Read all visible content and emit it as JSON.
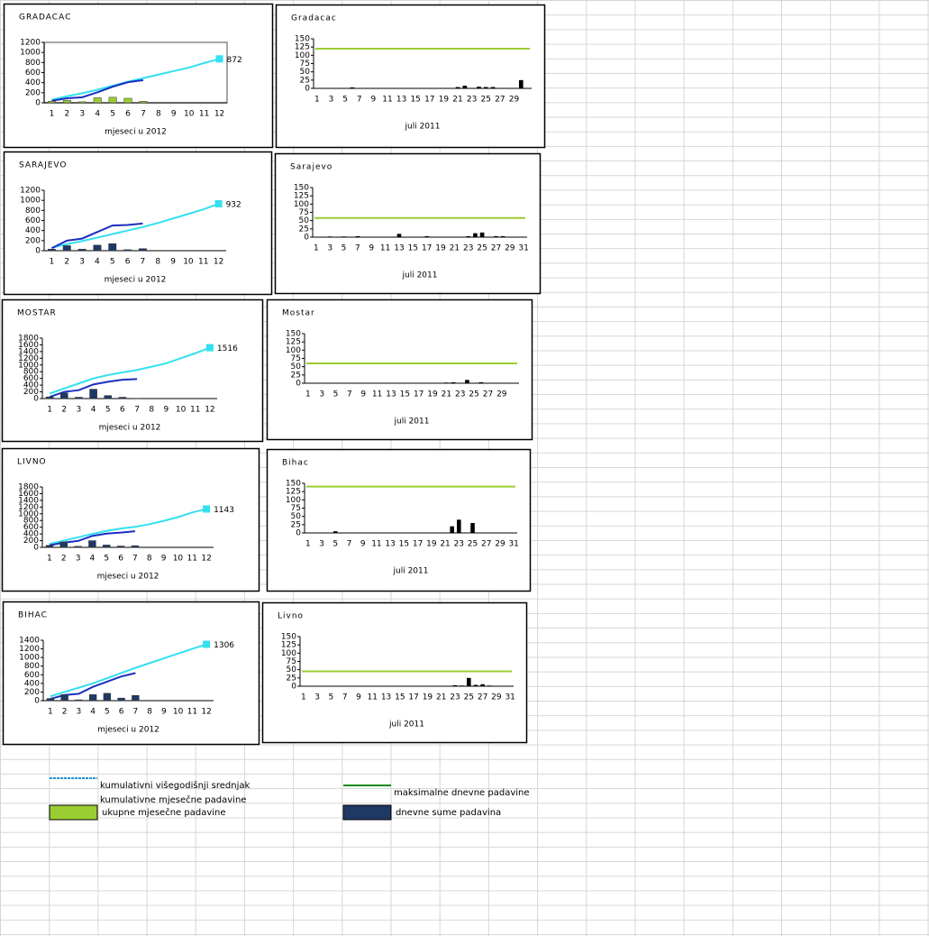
{
  "chart_data": [
    {
      "type": "monthly",
      "title": "GRADACAC",
      "x_label": "mjeseci u 2012",
      "categories": [
        1,
        2,
        3,
        4,
        5,
        6,
        7,
        8,
        9,
        10,
        11,
        12
      ],
      "ylim": [
        0,
        1200
      ],
      "yticks": [
        0,
        200,
        400,
        600,
        800,
        1000,
        1200
      ],
      "plot_border": true,
      "series": [
        {
          "kind": "line",
          "color": "#33e0f0",
          "values": [
            60,
            130,
            190,
            260,
            340,
            420,
            490,
            560,
            630,
            700,
            790,
            872
          ]
        },
        {
          "kind": "line",
          "color": "#1a2fbf",
          "values": [
            40,
            90,
            110,
            210,
            320,
            410,
            450,
            null,
            null,
            null,
            null,
            null
          ]
        },
        {
          "kind": "bar",
          "color": "#9acd32",
          "values": [
            30,
            50,
            20,
            100,
            110,
            90,
            30,
            null,
            null,
            null,
            null,
            null
          ]
        }
      ]
    },
    {
      "type": "daily",
      "title": "Gradacac",
      "x_label": "juli 2011",
      "categories": [
        1,
        null,
        3,
        null,
        5,
        null,
        7,
        null,
        9,
        null,
        11,
        null,
        13,
        null,
        15,
        null,
        17,
        null,
        19,
        null,
        21,
        null,
        23,
        null,
        25,
        null,
        27,
        null,
        29,
        null,
        null
      ],
      "ylim": [
        0,
        150
      ],
      "yticks": [
        0,
        25,
        50,
        75,
        100,
        125,
        150
      ],
      "bar_color": "#000000",
      "max_value": 120,
      "max_color": "#9acd32",
      "values": [
        0,
        0,
        0,
        0,
        0,
        3,
        0,
        0,
        0,
        0,
        0,
        0,
        0,
        0,
        0,
        0,
        0,
        0,
        0,
        0,
        4,
        8,
        0,
        5,
        4,
        4,
        0,
        0,
        0,
        25,
        0
      ]
    },
    {
      "type": "monthly",
      "title": "SARAJEVO",
      "x_label": "mjeseci u 2012",
      "categories": [
        1,
        2,
        3,
        4,
        5,
        6,
        7,
        8,
        9,
        10,
        11,
        12
      ],
      "ylim": [
        0,
        1200
      ],
      "yticks": [
        0,
        200,
        400,
        600,
        800,
        1000,
        1200
      ],
      "plot_border": false,
      "series": [
        {
          "kind": "line",
          "color": "#33e0f0",
          "values": [
            60,
            130,
            190,
            260,
            330,
            400,
            470,
            550,
            640,
            730,
            820,
            932
          ]
        },
        {
          "kind": "line",
          "color": "#1a2fbf",
          "values": [
            50,
            200,
            240,
            370,
            500,
            510,
            540,
            null,
            null,
            null,
            null,
            null
          ]
        },
        {
          "kind": "bar",
          "color": "#1f3864",
          "values": [
            30,
            100,
            30,
            110,
            140,
            20,
            40,
            null,
            null,
            null,
            null,
            null
          ]
        }
      ]
    },
    {
      "type": "daily",
      "title": "Sarajevo",
      "x_label": "juli 2011",
      "categories": [
        1,
        null,
        3,
        null,
        5,
        null,
        7,
        null,
        9,
        null,
        11,
        null,
        13,
        null,
        15,
        null,
        17,
        null,
        19,
        null,
        21,
        null,
        23,
        null,
        25,
        null,
        27,
        null,
        29,
        null,
        31
      ],
      "ylim": [
        0,
        150
      ],
      "yticks": [
        0,
        25,
        50,
        75,
        100,
        125,
        150
      ],
      "bar_color": "#000000",
      "max_value": 58,
      "max_color": "#9acd32",
      "values": [
        0,
        0,
        2,
        0,
        2,
        0,
        3,
        0,
        0,
        0,
        0,
        0,
        10,
        0,
        0,
        0,
        3,
        0,
        0,
        0,
        0,
        0,
        3,
        12,
        14,
        0,
        3,
        3,
        0,
        0,
        0
      ]
    },
    {
      "type": "monthly",
      "title": "MOSTAR",
      "x_label": "mjeseci u 2012",
      "categories": [
        1,
        2,
        3,
        4,
        5,
        6,
        7,
        8,
        9,
        10,
        11,
        12
      ],
      "ylim": [
        0,
        1800
      ],
      "yticks": [
        0,
        200,
        400,
        600,
        800,
        1000,
        1200,
        1400,
        1600,
        1800
      ],
      "plot_border": false,
      "series": [
        {
          "kind": "line",
          "color": "#33e0f0",
          "values": [
            150,
            300,
            450,
            600,
            700,
            780,
            850,
            950,
            1050,
            1200,
            1350,
            1516
          ]
        },
        {
          "kind": "line",
          "color": "#1a2fbf",
          "values": [
            50,
            200,
            250,
            420,
            500,
            560,
            580,
            null,
            null,
            null,
            null,
            null
          ]
        },
        {
          "kind": "bar",
          "color": "#1f3864",
          "values": [
            50,
            170,
            40,
            280,
            90,
            40,
            10,
            null,
            null,
            null,
            null,
            null
          ]
        }
      ]
    },
    {
      "type": "daily",
      "title": "Mostar",
      "x_label": "juli 2011",
      "categories": [
        1,
        null,
        3,
        null,
        5,
        null,
        7,
        null,
        9,
        null,
        11,
        null,
        13,
        null,
        15,
        null,
        17,
        null,
        19,
        null,
        21,
        null,
        23,
        null,
        25,
        null,
        27,
        null,
        29,
        null,
        null
      ],
      "ylim": [
        0,
        150
      ],
      "yticks": [
        0,
        25,
        50,
        75,
        100,
        125,
        150
      ],
      "bar_color": "#000000",
      "max_value": 60,
      "max_color": "#9acd32",
      "values": [
        0,
        0,
        0,
        0,
        0,
        0,
        0,
        0,
        0,
        0,
        0,
        0,
        0,
        0,
        0,
        0,
        0,
        0,
        0,
        0,
        2,
        3,
        0,
        10,
        0,
        3,
        0,
        0,
        0,
        0,
        0
      ]
    },
    {
      "type": "monthly",
      "title": "LIVNO",
      "x_label": "mjeseci u 2012",
      "categories": [
        1,
        2,
        3,
        4,
        5,
        6,
        7,
        8,
        9,
        10,
        11,
        12
      ],
      "ylim": [
        0,
        1800
      ],
      "yticks": [
        0,
        200,
        400,
        600,
        800,
        1000,
        1200,
        1400,
        1600,
        1800
      ],
      "plot_border": false,
      "series": [
        {
          "kind": "line",
          "color": "#33e0f0",
          "values": [
            100,
            200,
            300,
            400,
            490,
            560,
            610,
            690,
            790,
            900,
            1040,
            1143
          ]
        },
        {
          "kind": "line",
          "color": "#1a2fbf",
          "values": [
            60,
            140,
            190,
            340,
            410,
            440,
            480,
            null,
            null,
            null,
            null,
            null
          ]
        },
        {
          "kind": "bar",
          "color": "#1f3864",
          "values": [
            60,
            160,
            30,
            200,
            70,
            40,
            50,
            null,
            null,
            null,
            null,
            null
          ]
        }
      ]
    },
    {
      "type": "daily",
      "title": "Bihac",
      "x_label": "juli 2011",
      "categories": [
        1,
        null,
        3,
        null,
        5,
        null,
        7,
        null,
        9,
        null,
        11,
        null,
        13,
        null,
        15,
        null,
        17,
        null,
        19,
        null,
        21,
        null,
        23,
        null,
        25,
        null,
        27,
        null,
        29,
        null,
        31
      ],
      "ylim": [
        0,
        150
      ],
      "yticks": [
        0,
        25,
        50,
        75,
        100,
        125,
        150
      ],
      "bar_color": "#000000",
      "max_value": 140,
      "max_color": "#9acd32",
      "values": [
        0,
        0,
        0,
        0,
        5,
        0,
        0,
        0,
        0,
        0,
        0,
        0,
        0,
        0,
        0,
        0,
        0,
        0,
        0,
        0,
        0,
        20,
        40,
        0,
        30,
        0,
        0,
        0,
        0,
        0,
        0
      ]
    },
    {
      "type": "monthly",
      "title": "BIHAC",
      "x_label": "mjeseci u 2012",
      "categories": [
        1,
        2,
        3,
        4,
        5,
        6,
        7,
        8,
        9,
        10,
        11,
        12
      ],
      "ylim": [
        0,
        1400
      ],
      "yticks": [
        0,
        200,
        400,
        600,
        800,
        1000,
        1200,
        1400
      ],
      "plot_border": false,
      "series": [
        {
          "kind": "line",
          "color": "#33e0f0",
          "values": [
            100,
            200,
            300,
            400,
            520,
            640,
            760,
            870,
            980,
            1090,
            1200,
            1306
          ]
        },
        {
          "kind": "line",
          "color": "#1a2fbf",
          "values": [
            40,
            130,
            160,
            320,
            440,
            560,
            640,
            null,
            null,
            null,
            null,
            null
          ]
        },
        {
          "kind": "bar",
          "color": "#1f3864",
          "values": [
            50,
            140,
            20,
            140,
            170,
            60,
            120,
            null,
            null,
            null,
            null,
            null
          ]
        }
      ]
    },
    {
      "type": "daily",
      "title": "Livno",
      "x_label": "juli 2011",
      "categories": [
        1,
        null,
        3,
        null,
        5,
        null,
        7,
        null,
        9,
        null,
        11,
        null,
        13,
        null,
        15,
        null,
        17,
        null,
        19,
        null,
        21,
        null,
        23,
        null,
        25,
        null,
        27,
        null,
        29,
        null,
        31
      ],
      "ylim": [
        0,
        150
      ],
      "yticks": [
        0,
        25,
        50,
        75,
        100,
        125,
        150
      ],
      "bar_color": "#000000",
      "max_value": 45,
      "max_color": "#9acd32",
      "values": [
        0,
        0,
        0,
        0,
        0,
        0,
        0,
        0,
        0,
        0,
        0,
        0,
        0,
        0,
        0,
        0,
        0,
        0,
        0,
        0,
        0,
        0,
        3,
        2,
        25,
        4,
        6,
        2,
        0,
        0,
        0
      ]
    }
  ],
  "legend": [
    {
      "label": "kumulativni višegodišnji srednjak",
      "kind": "dashed",
      "color": "#1e90d0"
    },
    {
      "label": "kumulativne mjesečne padavine",
      "kind": "line",
      "color": "#ffffff"
    },
    {
      "label": "ukupne mjesečne  padavine",
      "kind": "box",
      "color": "#9acd32"
    },
    {
      "label": "maksimalne dnevne padavine",
      "kind": "line",
      "color": "#1a8a1a"
    },
    {
      "label": "dnevne sume padavina",
      "kind": "box",
      "color": "#1f3864"
    }
  ]
}
